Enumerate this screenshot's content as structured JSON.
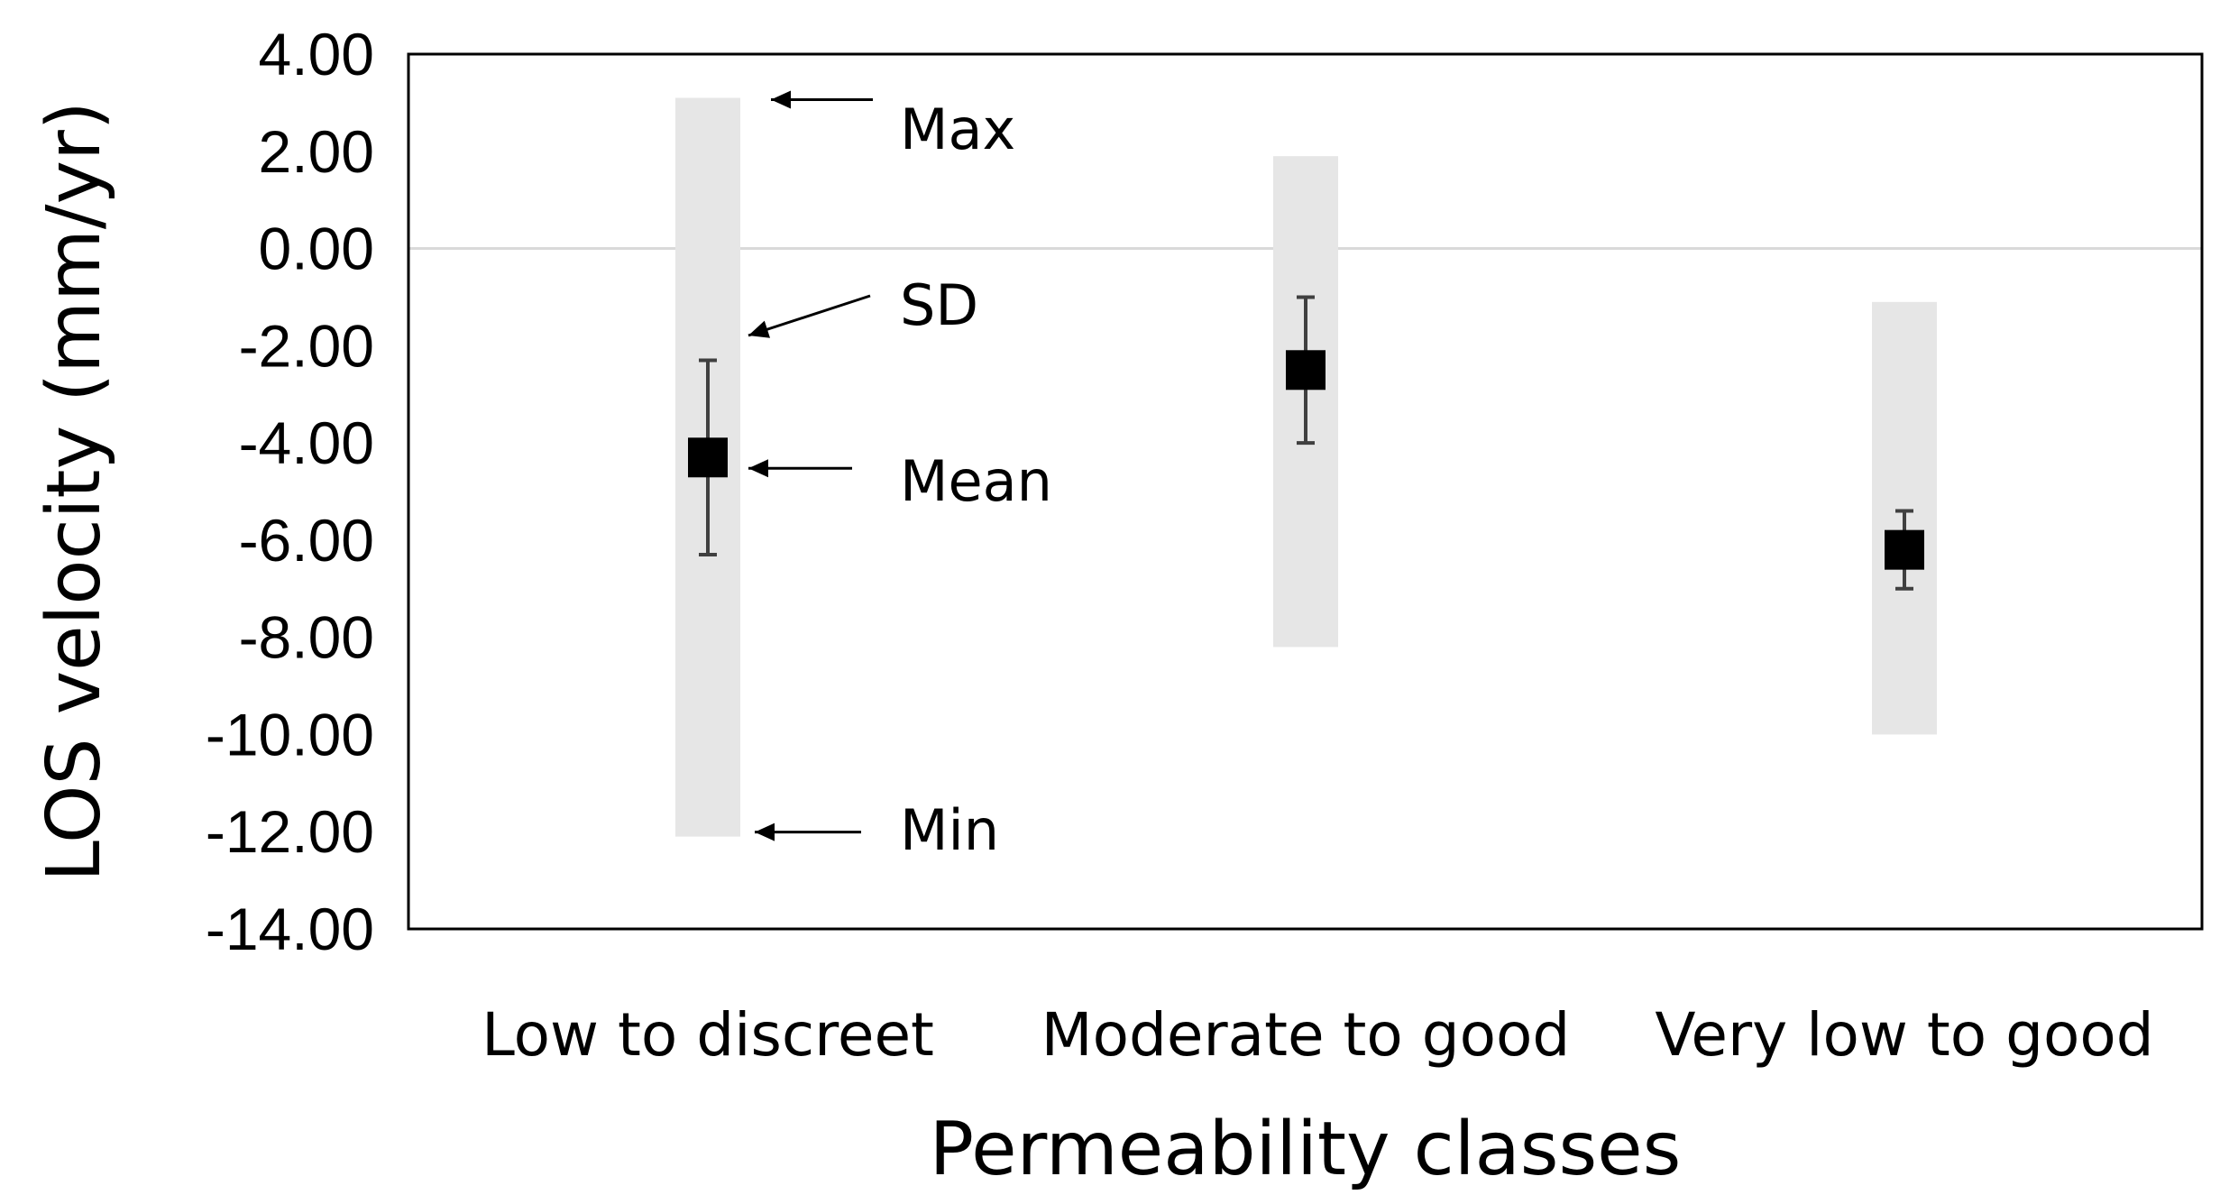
{
  "chart_data": {
    "type": "range-errorbar",
    "title": "",
    "xlabel": "Permeability classes",
    "ylabel": "LOS velocity (mm/yr)",
    "ylim": [
      -14,
      4
    ],
    "yticks": [
      "4.00",
      "2.00",
      "0.00",
      "-2.00",
      "-4.00",
      "-6.00",
      "-8.00",
      "-10.00",
      "-12.00",
      "-14.00"
    ],
    "ytick_values": [
      4,
      2,
      0,
      -2,
      -4,
      -6,
      -8,
      -10,
      -12,
      -14
    ],
    "categories": [
      "Low to discreet",
      "Moderate to good",
      "Very low to good"
    ],
    "series": [
      {
        "name": "Max",
        "values": [
          3.1,
          1.9,
          -1.1
        ]
      },
      {
        "name": "Min",
        "values": [
          -12.1,
          -8.2,
          -10.0
        ]
      },
      {
        "name": "Mean",
        "values": [
          -4.3,
          -2.5,
          -6.2
        ]
      },
      {
        "name": "SD",
        "values": [
          2.0,
          1.5,
          0.8
        ]
      }
    ],
    "zero_line": true,
    "grid": false,
    "legend": "none",
    "annotations": [
      {
        "label": "Max",
        "target": "Low to discreet"
      },
      {
        "label": "SD",
        "target": "Low to discreet"
      },
      {
        "label": "Mean",
        "target": "Low to discreet"
      },
      {
        "label": "Min",
        "target": "Low to discreet"
      }
    ],
    "colors": {
      "range_bar": "#e6e6e6",
      "marker": "#000000",
      "error_bar": "#404040",
      "zero_line": "#d9d9d9",
      "frame": "#000000"
    }
  }
}
